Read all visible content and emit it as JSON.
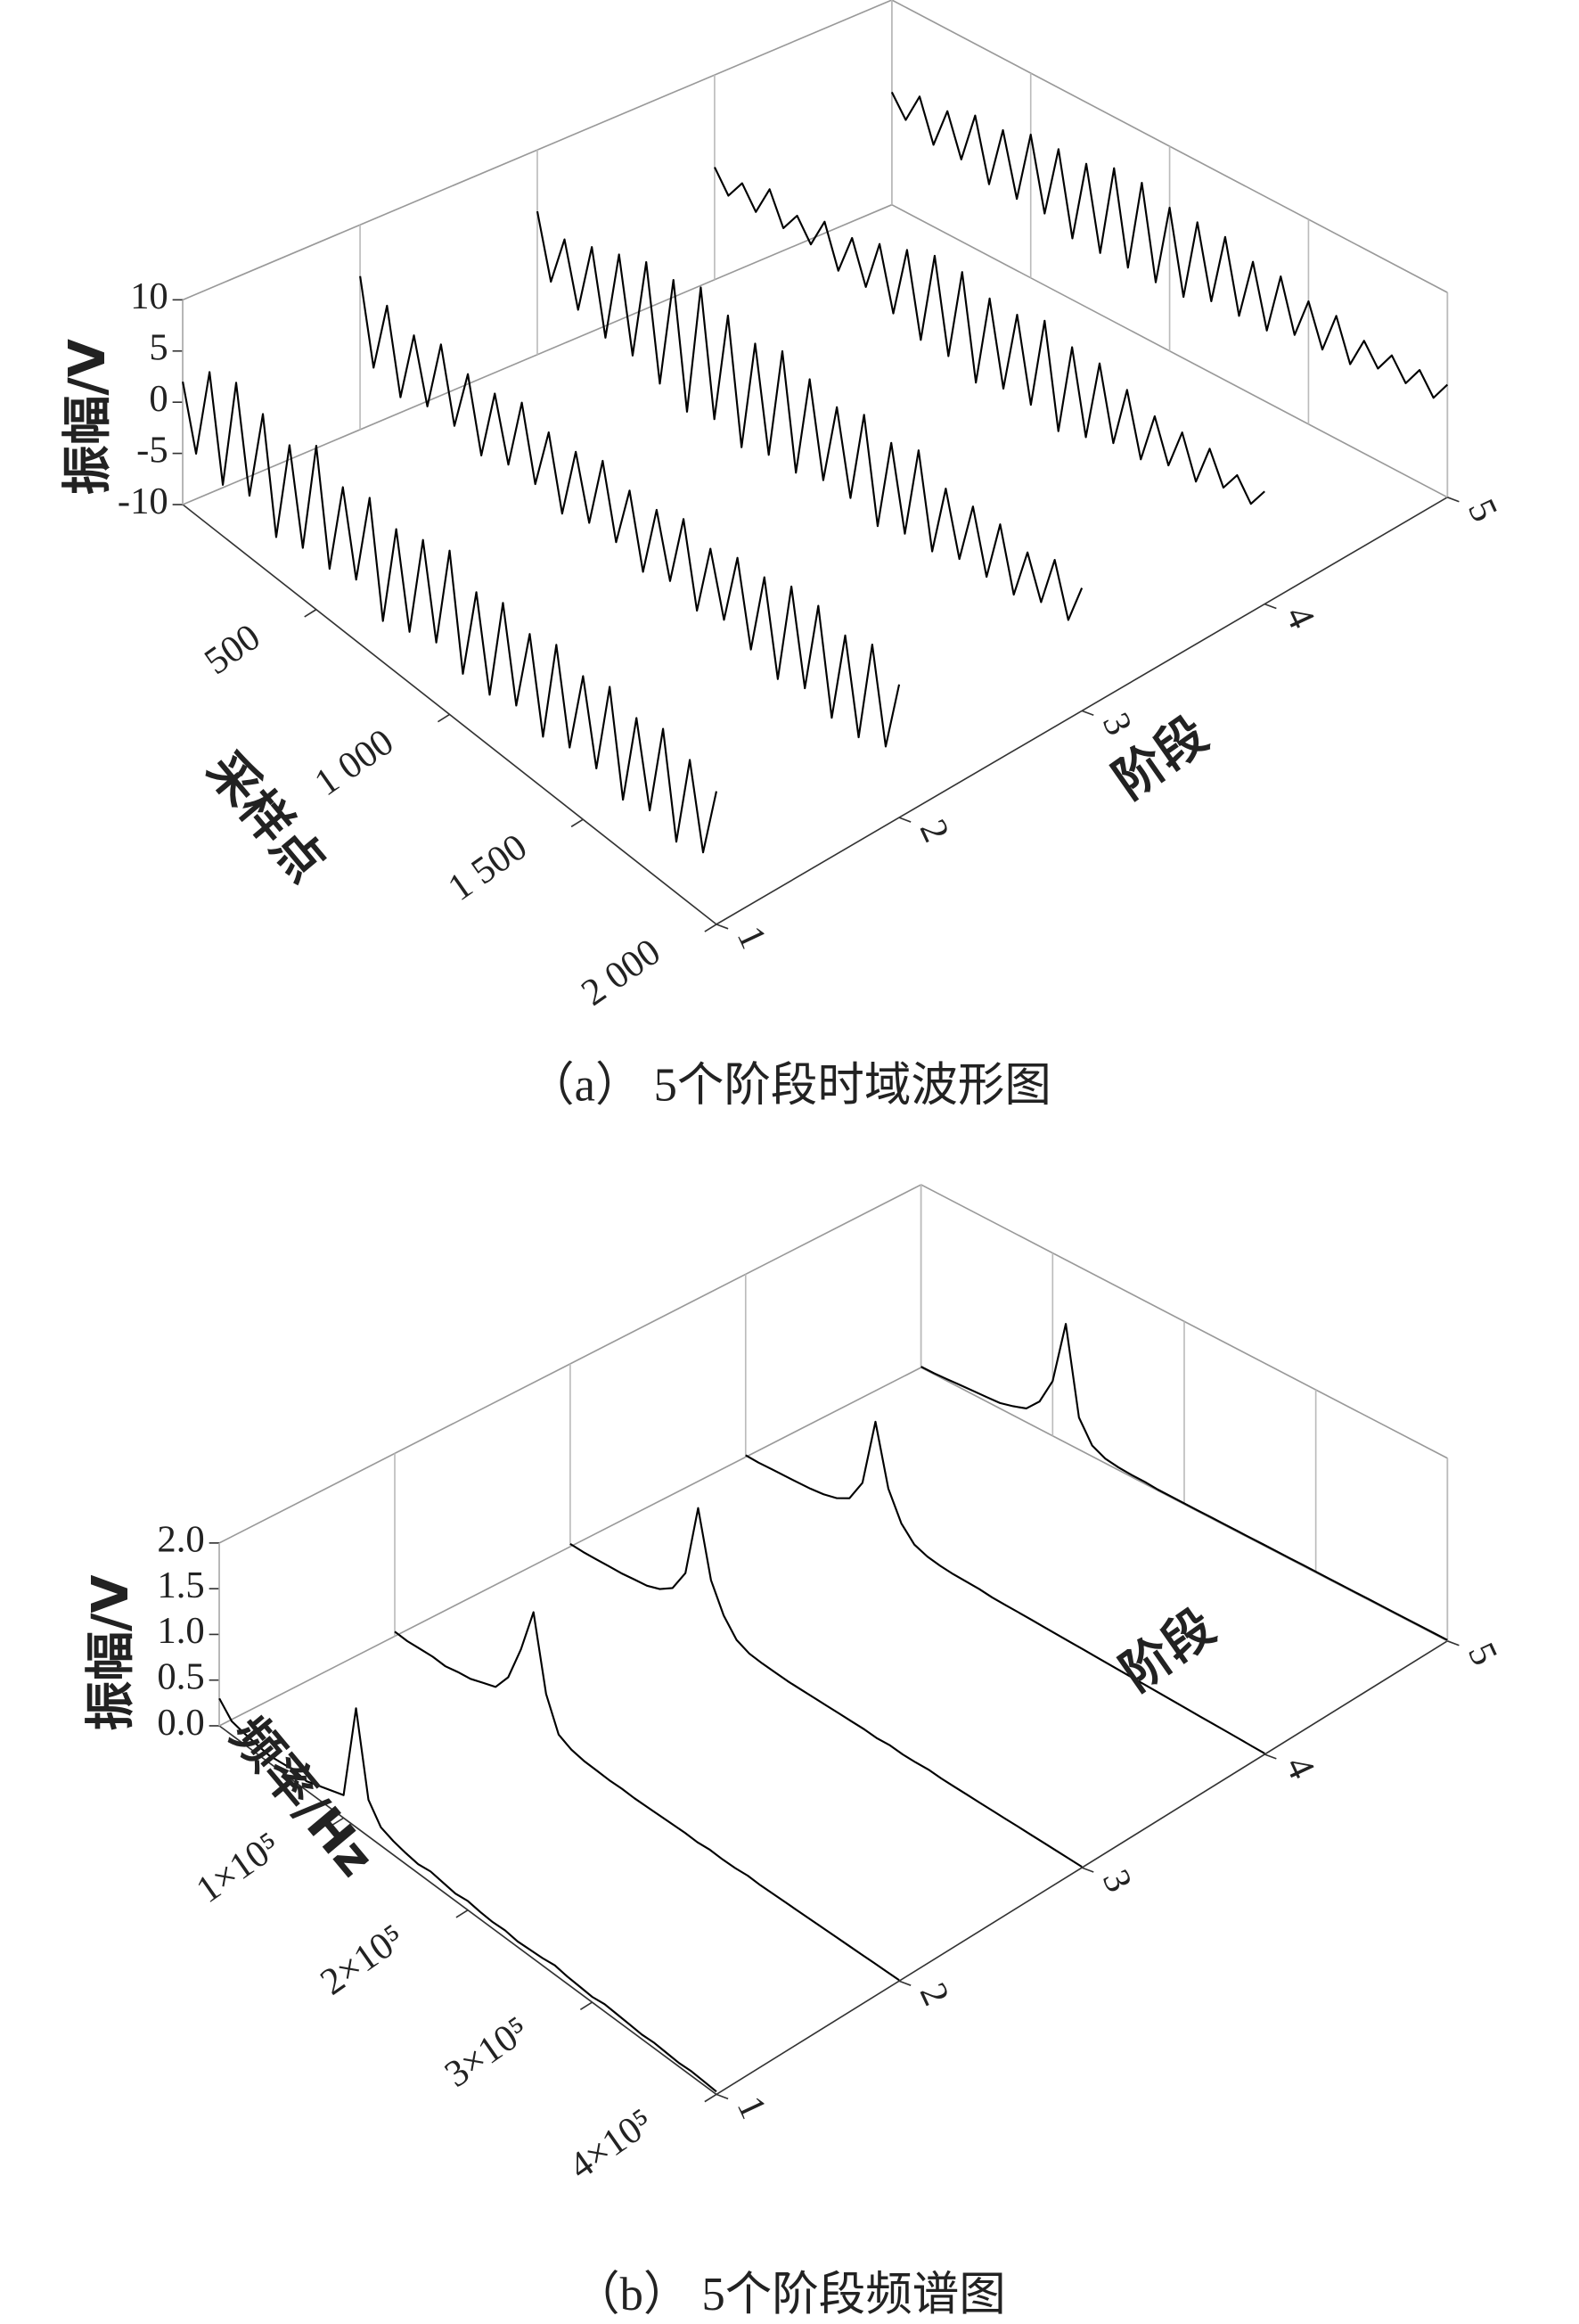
{
  "chart_data": [
    {
      "type": "waterfall3d",
      "title": "（a） 5个阶段时域波形图",
      "xlabel": "采样点",
      "ylabel": "阶段",
      "zlabel": "振幅/V",
      "x": [
        0,
        50,
        100,
        150,
        200,
        250,
        300,
        350,
        400,
        450,
        500,
        550,
        600,
        650,
        700,
        750,
        800,
        850,
        900,
        950,
        1000,
        1050,
        1100,
        1150,
        1200,
        1250,
        1300,
        1350,
        1400,
        1450,
        1500,
        1550,
        1600,
        1650,
        1700,
        1750,
        1800,
        1850,
        1900,
        1950,
        2000
      ],
      "xlim": [
        0,
        2000
      ],
      "xticks": [
        500,
        {
          "value": 1000,
          "label": "1 000"
        },
        {
          "value": 1500,
          "label": "1 500"
        },
        {
          "value": 2000,
          "label": "2 000"
        }
      ],
      "categories": [
        "1",
        "2",
        "3",
        "4",
        "5"
      ],
      "zlim": [
        -10,
        10
      ],
      "zticks": [
        -10,
        -5,
        0,
        5,
        10
      ],
      "grid": true,
      "series": [
        {
          "color": "#000000",
          "values": [
            2,
            -4,
            5,
            -5,
            6,
            -4,
            5,
            -6,
            4,
            -5,
            6,
            -5,
            4,
            -4,
            5,
            -6,
            4,
            -5,
            5,
            -4,
            6,
            -5,
            4,
            -5,
            5,
            -4,
            4,
            -5,
            5,
            -4,
            4,
            -4,
            5,
            -5,
            4,
            -4,
            5,
            -5,
            4,
            -4,
            3
          ]
        },
        {
          "color": "#000000",
          "values": [
            5,
            -3,
            4,
            -4,
            3,
            -3,
            4,
            -3,
            3,
            -4,
            3,
            -3,
            4,
            -3,
            3,
            -4,
            3,
            -3,
            4,
            -3,
            3,
            -4,
            3,
            -3,
            4,
            -4,
            3,
            -3,
            4,
            -4,
            4,
            -5,
            5,
            -4,
            5,
            -5,
            4,
            -5,
            5,
            -4,
            3
          ]
        },
        {
          "color": "#000000",
          "values": [
            4,
            -2,
            3,
            -3,
            4,
            -4,
            5,
            -4,
            6,
            -5,
            6,
            -6,
            7,
            -5,
            6,
            -6,
            5,
            -5,
            6,
            -5,
            5,
            -4,
            4,
            -4,
            5,
            -5,
            4,
            -4,
            5,
            -4,
            3,
            -3,
            3,
            -3,
            3,
            -3,
            2,
            -2,
            3,
            -2,
            2
          ]
        },
        {
          "color": "#000000",
          "values": [
            1,
            -1,
            1,
            -1,
            2,
            -1,
            1,
            -1,
            2,
            -2,
            2,
            -2,
            3,
            -3,
            4,
            -4,
            5,
            -4,
            5,
            -5,
            4,
            -4,
            4,
            -4,
            5,
            -5,
            4,
            -4,
            4,
            -3,
            3,
            -3,
            2,
            -2,
            2,
            -2,
            2,
            -1,
            1,
            -1,
            1
          ]
        },
        {
          "color": "#000000",
          "values": [
            1,
            -1,
            2,
            -2,
            2,
            -2,
            3,
            -3,
            3,
            -3,
            4,
            -3,
            4,
            -4,
            4,
            -4,
            5,
            -4,
            5,
            -4,
            4,
            -4,
            4,
            -3,
            4,
            -3,
            3,
            -3,
            3,
            -2,
            2,
            -2,
            2,
            -2,
            1,
            -1,
            1,
            -1,
            1,
            -1,
            1
          ]
        }
      ]
    },
    {
      "type": "waterfall3d",
      "title": "（b） 5个阶段频谱图",
      "xlabel": "频率/Hz",
      "ylabel": "阶段",
      "zlabel": "振幅/V",
      "x": [
        0,
        10000,
        20000,
        30000,
        40000,
        50000,
        60000,
        70000,
        80000,
        90000,
        100000,
        110000,
        120000,
        130000,
        140000,
        150000,
        160000,
        170000,
        180000,
        190000,
        200000,
        210000,
        220000,
        230000,
        240000,
        250000,
        260000,
        270000,
        280000,
        290000,
        300000,
        310000,
        320000,
        330000,
        340000,
        350000,
        360000,
        370000,
        380000,
        390000,
        400000
      ],
      "xlim": [
        0,
        400000
      ],
      "xticks": [
        {
          "value": 100000,
          "label": "1×10⁵"
        },
        {
          "value": 200000,
          "label": "2×10⁵"
        },
        {
          "value": 300000,
          "label": "3×10⁵"
        },
        {
          "value": 400000,
          "label": "4×10⁵"
        }
      ],
      "categories": [
        "1",
        "2",
        "3",
        "4",
        "5"
      ],
      "zlim": [
        0,
        2
      ],
      "zticks": [
        {
          "value": 0,
          "label": "0.0"
        },
        {
          "value": 0.5,
          "label": "0.5"
        },
        {
          "value": 1,
          "label": "1.0"
        },
        {
          "value": 1.5,
          "label": "1.5"
        },
        {
          "value": 2,
          "label": "2.0"
        }
      ],
      "grid": true,
      "series": [
        {
          "color": "#000000",
          "values": [
            0.3,
            0.15,
            0.12,
            0.1,
            0.08,
            0.1,
            0.12,
            0.1,
            0.15,
            0.2,
            0.25,
            1.3,
            0.4,
            0.2,
            0.15,
            0.12,
            0.1,
            0.12,
            0.1,
            0.08,
            0.1,
            0.08,
            0.07,
            0.08,
            0.06,
            0.07,
            0.08,
            0.1,
            0.08,
            0.07,
            0.06,
            0.08,
            0.07,
            0.06,
            0.05,
            0.06,
            0.05,
            0.04,
            0.05,
            0.04,
            0.03
          ]
        },
        {
          "color": "#000000",
          "values": [
            0.05,
            0.04,
            0.05,
            0.06,
            0.05,
            0.08,
            0.1,
            0.15,
            0.2,
            0.4,
            0.8,
            1.3,
            0.5,
            0.15,
            0.08,
            0.05,
            0.04,
            0.03,
            0.03,
            0.02,
            0.02,
            0.02,
            0.02,
            0.02,
            0.01,
            0.02,
            0.01,
            0.01,
            0.02,
            0.01,
            0.01,
            0.01,
            0.01,
            0.01,
            0.01,
            0.01,
            0.01,
            0.01,
            0.01,
            0.01,
            0.01
          ]
        },
        {
          "color": "#000000",
          "values": [
            0.03,
            0.03,
            0.04,
            0.05,
            0.06,
            0.08,
            0.1,
            0.15,
            0.25,
            0.5,
            1.3,
            0.6,
            0.3,
            0.12,
            0.06,
            0.04,
            0.03,
            0.02,
            0.02,
            0.02,
            0.02,
            0.02,
            0.02,
            0.02,
            0.01,
            0.02,
            0.01,
            0.01,
            0.02,
            0.01,
            0.01,
            0.01,
            0.01,
            0.01,
            0.01,
            0.01,
            0.01,
            0.01,
            0.01,
            0.01,
            0.01
          ]
        },
        {
          "color": "#000000",
          "values": [
            0.02,
            0.02,
            0.03,
            0.04,
            0.05,
            0.06,
            0.08,
            0.12,
            0.2,
            0.45,
            1.2,
            0.55,
            0.25,
            0.1,
            0.05,
            0.03,
            0.02,
            0.02,
            0.02,
            0.01,
            0.01,
            0.01,
            0.01,
            0.01,
            0.01,
            0.01,
            0.01,
            0.01,
            0.01,
            0.01,
            0.01,
            0.01,
            0.01,
            0.01,
            0.01,
            0.01,
            0.01,
            0.01,
            0.01,
            0.01,
            0.01
          ]
        },
        {
          "color": "#000000",
          "values": [
            0.01,
            0.01,
            0.02,
            0.03,
            0.04,
            0.05,
            0.06,
            0.1,
            0.15,
            0.3,
            0.6,
            1.3,
            0.35,
            0.12,
            0.05,
            0.03,
            0.02,
            0.02,
            0.01,
            0.01,
            0.01,
            0.01,
            0.01,
            0.01,
            0.01,
            0.01,
            0.01,
            0.01,
            0.01,
            0.01,
            0.01,
            0.01,
            0.01,
            0.01,
            0.01,
            0.01,
            0.01,
            0.01,
            0.01,
            0.01,
            0.01
          ]
        }
      ]
    }
  ]
}
